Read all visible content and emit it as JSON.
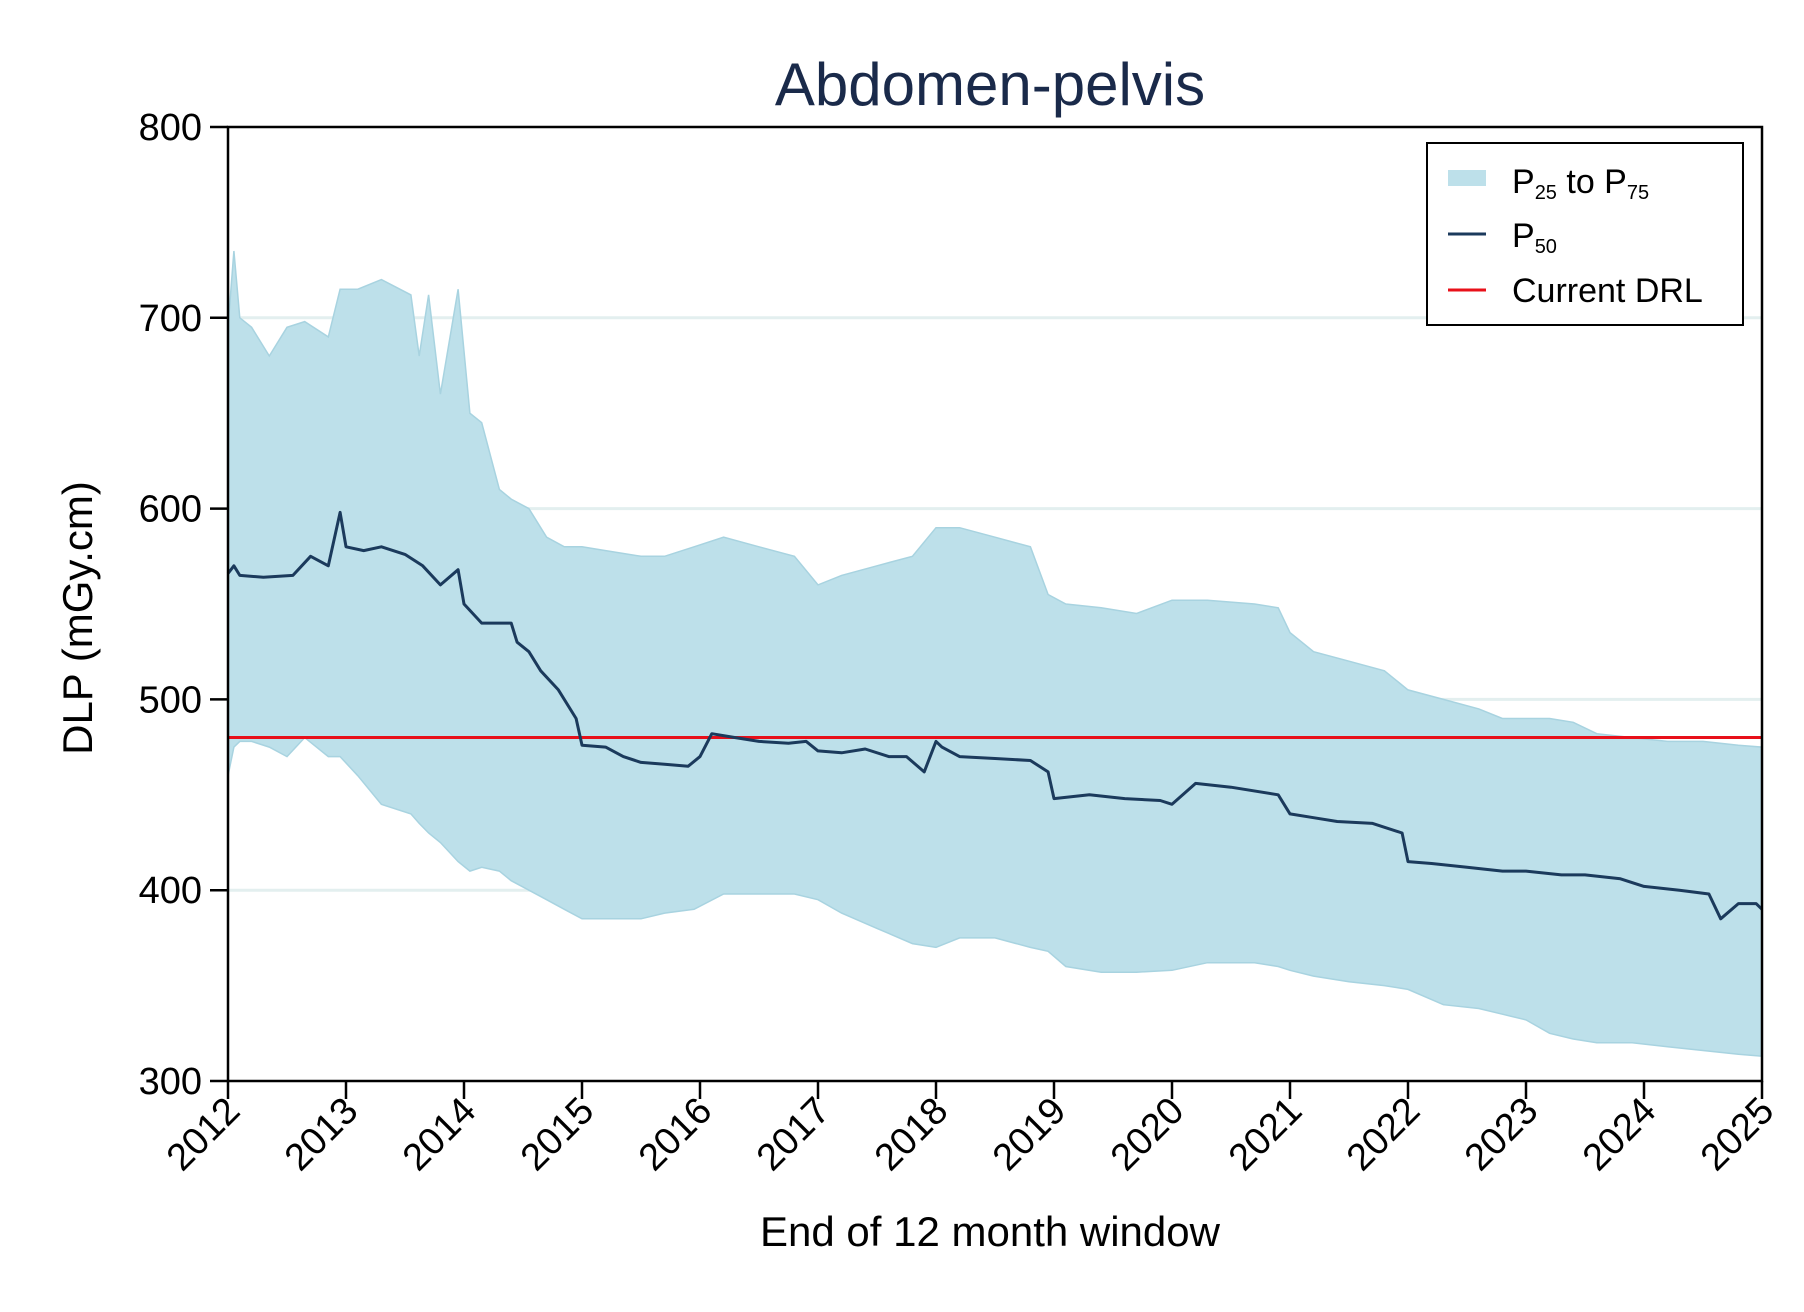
{
  "chart_data": {
    "type": "area",
    "title": "Abdomen-pelvis",
    "xlabel": "End of 12 month window",
    "ylabel": "DLP (mGy.cm)",
    "xlim": [
      2012,
      2025
    ],
    "ylim": [
      300,
      800
    ],
    "x_ticks": [
      "2012",
      "2013",
      "2014",
      "2015",
      "2016",
      "2017",
      "2018",
      "2019",
      "2020",
      "2021",
      "2022",
      "2023",
      "2024",
      "2025"
    ],
    "y_ticks": [
      "300",
      "400",
      "500",
      "600",
      "700",
      "800"
    ],
    "grid": "horizontal",
    "legend_position": "top-right",
    "legend": {
      "band": {
        "prefix": "P",
        "sub1": "25",
        "mid": " to P",
        "sub2": "75"
      },
      "median": {
        "prefix": "P",
        "sub": "50"
      },
      "drl": "Current DRL"
    },
    "colors": {
      "band": "#bde0ea",
      "median": "#1b3a5c",
      "drl": "#e8101a",
      "grid": "#e3efef",
      "title": "#1a2a4a"
    },
    "drl_value": 480,
    "series": [
      {
        "role": "band",
        "x": [
          2012.0,
          2012.05,
          2012.1,
          2012.2,
          2012.35,
          2012.5,
          2012.65,
          2012.85,
          2012.95,
          2013.1,
          2013.3,
          2013.55,
          2013.62,
          2013.7,
          2013.8,
          2013.95,
          2014.05,
          2014.15,
          2014.3,
          2014.4,
          2014.55,
          2014.7,
          2014.85,
          2015.0,
          2015.2,
          2015.5,
          2015.7,
          2015.95,
          2016.2,
          2016.5,
          2016.8,
          2017.0,
          2017.2,
          2017.5,
          2017.8,
          2018.0,
          2018.2,
          2018.5,
          2018.8,
          2018.95,
          2019.1,
          2019.4,
          2019.7,
          2020.0,
          2020.3,
          2020.7,
          2020.9,
          2021.0,
          2021.2,
          2021.5,
          2021.8,
          2022.0,
          2022.3,
          2022.6,
          2022.8,
          2023.0,
          2023.2,
          2023.4,
          2023.6,
          2023.9,
          2024.2,
          2024.5,
          2024.8,
          2025.0
        ],
        "upper": [
          695,
          735,
          700,
          695,
          680,
          695,
          698,
          690,
          715,
          715,
          720,
          712,
          680,
          712,
          660,
          715,
          650,
          645,
          610,
          605,
          600,
          585,
          580,
          580,
          578,
          575,
          575,
          580,
          585,
          580,
          575,
          560,
          565,
          570,
          575,
          590,
          590,
          585,
          580,
          555,
          550,
          548,
          545,
          552,
          552,
          550,
          548,
          535,
          525,
          520,
          515,
          505,
          500,
          495,
          490,
          490,
          490,
          488,
          482,
          480,
          478,
          478,
          476,
          475
        ],
        "lower": [
          460,
          475,
          478,
          478,
          475,
          470,
          480,
          470,
          470,
          460,
          445,
          440,
          435,
          430,
          425,
          415,
          410,
          412,
          410,
          405,
          400,
          395,
          390,
          385,
          385,
          385,
          388,
          390,
          398,
          398,
          398,
          395,
          388,
          380,
          372,
          370,
          375,
          375,
          370,
          368,
          360,
          357,
          357,
          358,
          362,
          362,
          360,
          358,
          355,
          352,
          350,
          348,
          340,
          338,
          335,
          332,
          325,
          322,
          320,
          320,
          318,
          316,
          314,
          313
        ]
      },
      {
        "role": "median",
        "name": "P50",
        "x": [
          2012.0,
          2012.05,
          2012.1,
          2012.3,
          2012.55,
          2012.7,
          2012.85,
          2012.95,
          2013.0,
          2013.15,
          2013.3,
          2013.5,
          2013.65,
          2013.8,
          2013.95,
          2014.0,
          2014.15,
          2014.4,
          2014.45,
          2014.55,
          2014.65,
          2014.8,
          2014.95,
          2015.0,
          2015.2,
          2015.35,
          2015.5,
          2015.7,
          2015.9,
          2016.0,
          2016.1,
          2016.3,
          2016.5,
          2016.75,
          2016.9,
          2017.0,
          2017.2,
          2017.4,
          2017.6,
          2017.75,
          2017.9,
          2018.0,
          2018.05,
          2018.2,
          2018.5,
          2018.8,
          2018.95,
          2019.0,
          2019.3,
          2019.6,
          2019.9,
          2020.0,
          2020.2,
          2020.5,
          2020.9,
          2021.0,
          2021.2,
          2021.4,
          2021.7,
          2021.95,
          2022.0,
          2022.2,
          2022.5,
          2022.8,
          2023.0,
          2023.3,
          2023.5,
          2023.8,
          2024.0,
          2024.3,
          2024.55,
          2024.65,
          2024.8,
          2024.95,
          2025.0
        ],
        "y": [
          566,
          570,
          565,
          564,
          565,
          575,
          570,
          598,
          580,
          578,
          580,
          576,
          570,
          560,
          568,
          550,
          540,
          540,
          530,
          525,
          515,
          505,
          490,
          476,
          475,
          470,
          467,
          466,
          465,
          470,
          482,
          480,
          478,
          477,
          478,
          473,
          472,
          474,
          470,
          470,
          462,
          478,
          475,
          470,
          469,
          468,
          462,
          448,
          450,
          448,
          447,
          445,
          456,
          454,
          450,
          440,
          438,
          436,
          435,
          430,
          415,
          414,
          412,
          410,
          410,
          408,
          408,
          406,
          402,
          400,
          398,
          385,
          393,
          393,
          390
        ]
      }
    ]
  }
}
